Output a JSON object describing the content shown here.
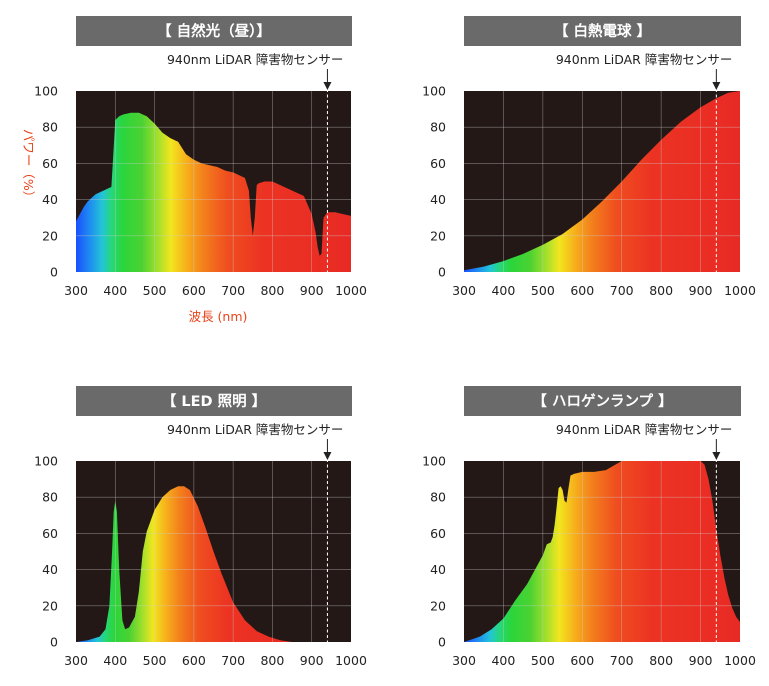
{
  "figure": {
    "sensor_label": "940nm LiDAR 障害物センサー",
    "y_axis_label": "パワー（%）",
    "x_axis_label": "波長 (nm)"
  },
  "chart_data": [
    {
      "type": "area",
      "title": "【 自然光（昼）】",
      "xlabel": "波長 (nm)",
      "ylabel": "パワー（%）",
      "xlim": [
        300,
        1000
      ],
      "ylim": [
        0,
        100
      ],
      "x_ticks": [
        300,
        400,
        500,
        600,
        700,
        800,
        900,
        1000
      ],
      "y_ticks": [
        0,
        20,
        40,
        60,
        80,
        100
      ],
      "grid": true,
      "annotation": {
        "x": 940,
        "label": "940nm LiDAR 障害物センサー"
      },
      "x": [
        300,
        310,
        320,
        330,
        340,
        350,
        360,
        370,
        380,
        390,
        400,
        410,
        420,
        440,
        460,
        480,
        500,
        520,
        540,
        560,
        580,
        600,
        620,
        640,
        660,
        680,
        700,
        710,
        720,
        730,
        740,
        745,
        750,
        755,
        760,
        765,
        780,
        800,
        820,
        840,
        860,
        880,
        900,
        910,
        915,
        920,
        925,
        930,
        940,
        960,
        980,
        1000
      ],
      "values": [
        28,
        32,
        36,
        39,
        41,
        43,
        44,
        45,
        46,
        47,
        84,
        86,
        87,
        88,
        88,
        86,
        82,
        77,
        74,
        72,
        65,
        62,
        60,
        59,
        58,
        56,
        55,
        54,
        53,
        52,
        45,
        30,
        20,
        30,
        48,
        49,
        50,
        50,
        48,
        46,
        44,
        42,
        32,
        22,
        14,
        9,
        10,
        30,
        33,
        33,
        32,
        31
      ]
    },
    {
      "type": "area",
      "title": "【 白熱電球 】",
      "xlim": [
        300,
        1000
      ],
      "ylim": [
        0,
        100
      ],
      "x_ticks": [
        300,
        400,
        500,
        600,
        700,
        800,
        900,
        1000
      ],
      "y_ticks": [
        0,
        20,
        40,
        60,
        80,
        100
      ],
      "grid": true,
      "annotation": {
        "x": 940,
        "label": "940nm LiDAR 障害物センサー"
      },
      "x": [
        300,
        350,
        400,
        450,
        500,
        550,
        600,
        650,
        700,
        750,
        800,
        850,
        900,
        940,
        970,
        1000
      ],
      "values": [
        1,
        3,
        6,
        10,
        15,
        21,
        29,
        39,
        50,
        62,
        73,
        83,
        91,
        96,
        99,
        100
      ]
    },
    {
      "type": "area",
      "title": "【 LED 照明 】",
      "xlim": [
        300,
        1000
      ],
      "ylim": [
        0,
        100
      ],
      "x_ticks": [
        300,
        400,
        500,
        600,
        700,
        800,
        900,
        1000
      ],
      "y_ticks": [
        0,
        20,
        40,
        60,
        80,
        100
      ],
      "grid": true,
      "annotation": {
        "x": 940,
        "label": "940nm LiDAR 障害物センサー"
      },
      "x": [
        300,
        330,
        360,
        375,
        385,
        392,
        396,
        400,
        404,
        410,
        418,
        425,
        435,
        450,
        460,
        470,
        480,
        500,
        520,
        540,
        560,
        575,
        590,
        610,
        630,
        650,
        670,
        700,
        730,
        760,
        790,
        820,
        850,
        870
      ],
      "values": [
        0,
        1,
        3,
        7,
        20,
        50,
        72,
        78,
        72,
        40,
        12,
        7,
        8,
        14,
        28,
        50,
        61,
        73,
        80,
        84,
        86,
        86,
        84,
        75,
        63,
        50,
        38,
        22,
        12,
        6,
        3,
        1,
        0,
        0
      ]
    },
    {
      "type": "area",
      "title": "【 ハロゲンランプ 】",
      "xlim": [
        300,
        1000
      ],
      "ylim": [
        0,
        100
      ],
      "x_ticks": [
        300,
        400,
        500,
        600,
        700,
        800,
        900,
        1000
      ],
      "y_ticks": [
        0,
        20,
        40,
        60,
        80,
        100
      ],
      "grid": true,
      "annotation": {
        "x": 940,
        "label": "940nm LiDAR 障害物センサー"
      },
      "x": [
        300,
        340,
        370,
        400,
        430,
        460,
        480,
        500,
        510,
        520,
        525,
        530,
        535,
        540,
        545,
        550,
        555,
        560,
        565,
        570,
        580,
        600,
        630,
        660,
        700,
        750,
        800,
        850,
        880,
        900,
        910,
        920,
        930,
        940,
        950,
        960,
        970,
        980,
        990,
        1000
      ],
      "values": [
        0,
        3,
        7,
        13,
        23,
        32,
        40,
        48,
        54,
        55,
        58,
        65,
        75,
        85,
        86,
        84,
        78,
        77,
        85,
        92,
        93,
        94,
        94,
        95,
        100,
        100,
        100,
        100,
        100,
        100,
        98,
        90,
        78,
        62,
        48,
        36,
        26,
        19,
        14,
        11
      ]
    }
  ]
}
